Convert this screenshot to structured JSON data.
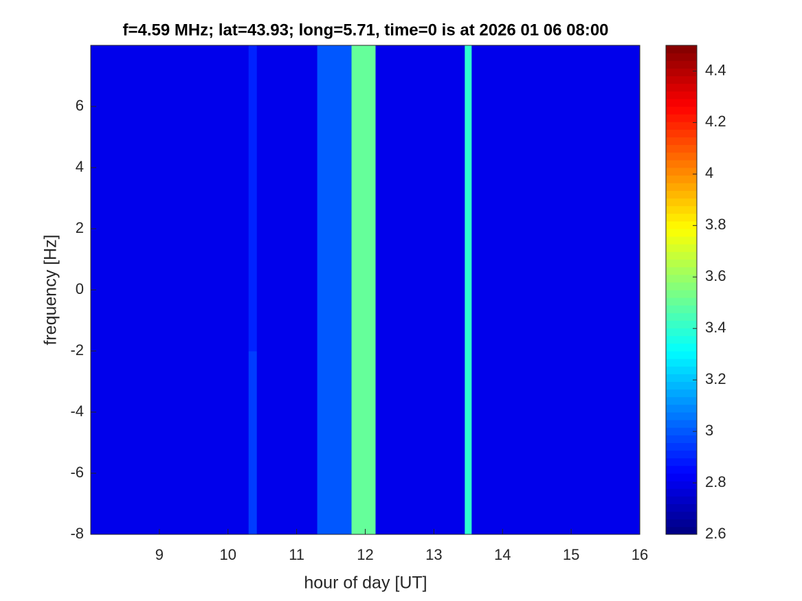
{
  "chart_data": {
    "type": "heatmap",
    "title": "f=4.59 MHz;  lat=43.93; long=5.71, time=0 is at 2026 01 06 08:00",
    "x_label": "hour of day [UT]",
    "y_label": "frequency [Hz]",
    "xlim": [
      8,
      16
    ],
    "xticks": [
      9,
      10,
      11,
      12,
      13,
      14,
      15,
      16
    ],
    "ylim": [
      -8,
      8
    ],
    "yticks": [
      -8,
      -6,
      -4,
      -2,
      0,
      2,
      4,
      6
    ],
    "x_edges": [
      8,
      10.3,
      10.42,
      11.3,
      11.8,
      12.15,
      13.45,
      13.55,
      16
    ],
    "y_edges": [
      -8,
      -6,
      -4,
      -2,
      0,
      2,
      4,
      6,
      8
    ],
    "z": [
      [
        2.8,
        2.95,
        2.8,
        3.0,
        3.5,
        2.8,
        3.4,
        2.8
      ],
      [
        2.8,
        2.95,
        2.8,
        3.0,
        3.5,
        2.8,
        3.4,
        2.8
      ],
      [
        2.8,
        2.95,
        2.8,
        3.0,
        3.5,
        2.8,
        3.4,
        2.8
      ],
      [
        2.8,
        2.9,
        2.8,
        3.0,
        3.5,
        2.8,
        3.4,
        2.8
      ],
      [
        2.8,
        2.9,
        2.8,
        3.0,
        3.5,
        2.8,
        3.4,
        2.8
      ],
      [
        2.8,
        2.9,
        2.8,
        3.0,
        3.5,
        2.8,
        3.4,
        2.8
      ],
      [
        2.8,
        2.9,
        2.8,
        3.0,
        3.5,
        2.8,
        3.4,
        2.8
      ],
      [
        2.8,
        2.9,
        2.8,
        3.0,
        3.5,
        2.8,
        3.4,
        2.8
      ]
    ],
    "colormap": "jet",
    "clim": [
      2.6,
      4.5
    ],
    "cticks": [
      2.6,
      2.8,
      3,
      3.2,
      3.4,
      3.6,
      3.8,
      4,
      4.2,
      4.4
    ]
  }
}
